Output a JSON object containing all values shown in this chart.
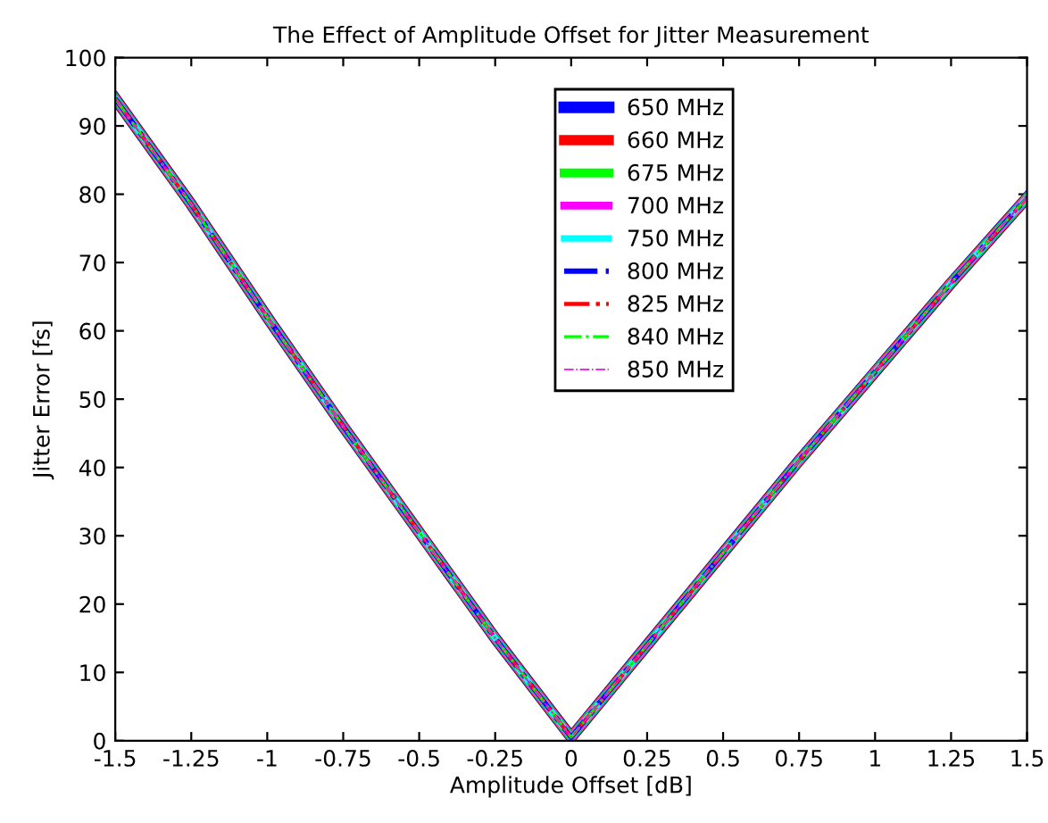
{
  "chart_data": {
    "type": "line",
    "title": "The Effect of Amplitude Offset for Jitter Measurement",
    "xlabel": "Amplitude Offset [dB]",
    "ylabel": "Jitter Error [fs]",
    "x": [
      -1.5,
      -1.25,
      -1,
      -0.75,
      -0.5,
      -0.25,
      0,
      0.25,
      0.5,
      0.75,
      1,
      1.25,
      1.5
    ],
    "series": [
      {
        "name": "650 MHz",
        "color": "#0000ff",
        "line_style": "solid",
        "values": [
          94,
          78.5,
          62,
          46,
          30.5,
          15,
          0.5,
          14,
          27.5,
          41,
          54,
          67,
          79.5
        ]
      },
      {
        "name": "660 MHz",
        "color": "#ff0000",
        "line_style": "solid",
        "values": [
          94,
          78.5,
          62,
          46,
          30.5,
          15,
          0.5,
          14,
          27.5,
          41,
          54,
          67,
          79.5
        ]
      },
      {
        "name": "675 MHz",
        "color": "#00ff00",
        "line_style": "solid",
        "values": [
          94,
          78.5,
          62,
          46,
          30.5,
          15,
          0.5,
          14,
          27.5,
          41,
          54,
          67,
          79.5
        ]
      },
      {
        "name": "700 MHz",
        "color": "#ff00ff",
        "line_style": "solid",
        "values": [
          94,
          78.5,
          62,
          46,
          30.5,
          15,
          0.5,
          14,
          27.5,
          41,
          54,
          67,
          79.5
        ]
      },
      {
        "name": "750 MHz",
        "color": "#00ffff",
        "line_style": "solid",
        "values": [
          94,
          78.5,
          62,
          46,
          30.5,
          15,
          0.5,
          14,
          27.5,
          41,
          54,
          67,
          79.5
        ]
      },
      {
        "name": "800 MHz",
        "color": "#0000ff",
        "line_style": "dashdot",
        "values": [
          94,
          78.5,
          62,
          46,
          30.5,
          15,
          0.5,
          14,
          27.5,
          41,
          54,
          67,
          79.5
        ]
      },
      {
        "name": "825 MHz",
        "color": "#ff0000",
        "line_style": "dashdot",
        "values": [
          94,
          78.5,
          62,
          46,
          30.5,
          15,
          0.5,
          14,
          27.5,
          41,
          54,
          67,
          79.5
        ]
      },
      {
        "name": "840 MHz",
        "color": "#00ff00",
        "line_style": "dashdot",
        "values": [
          94,
          78.5,
          62,
          46,
          30.5,
          15,
          0.5,
          14,
          27.5,
          41,
          54,
          67,
          79.5
        ]
      },
      {
        "name": "850 MHz",
        "color": "#ff00ff",
        "line_style": "dashdot",
        "values": [
          94,
          78.5,
          62,
          46,
          30.5,
          15,
          0.5,
          14,
          27.5,
          41,
          54,
          67,
          79.5
        ]
      }
    ],
    "xlim": [
      -1.5,
      1.5
    ],
    "xticks": [
      -1.5,
      -1.25,
      -1,
      -0.75,
      -0.5,
      -0.25,
      0,
      0.25,
      0.5,
      0.75,
      1,
      1.25,
      1.5
    ],
    "ylim": [
      0,
      100
    ],
    "yticks": [
      0,
      10,
      20,
      30,
      40,
      50,
      60,
      70,
      80,
      90,
      100
    ],
    "grid": false,
    "legend": "top",
    "marker": "none"
  }
}
